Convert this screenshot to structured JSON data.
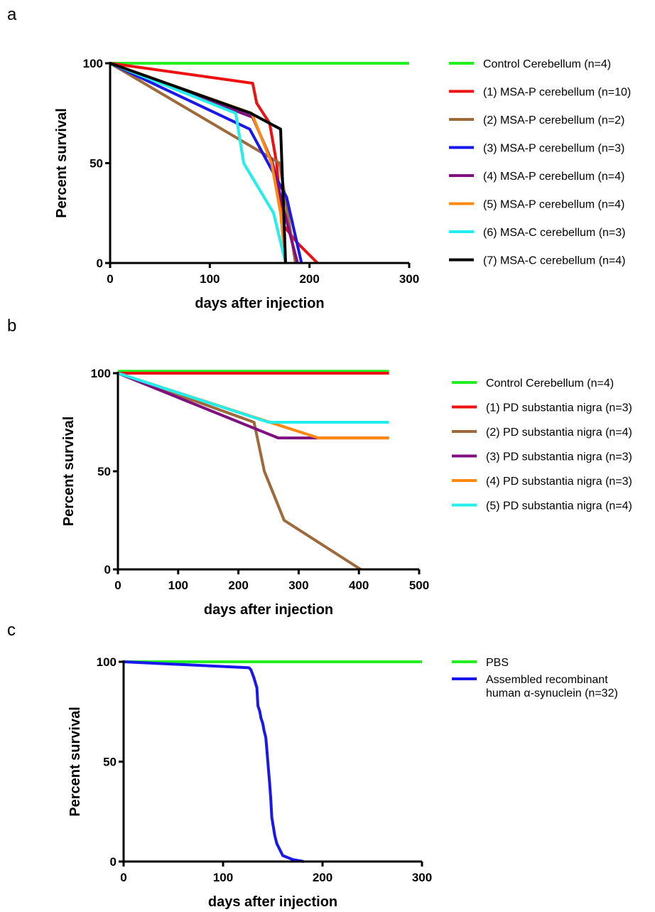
{
  "chart_data": [
    {
      "panel_label": "a",
      "type": "line",
      "xlabel": "days after injection",
      "ylabel": "Percent survival",
      "xlim": [
        0,
        300
      ],
      "ylim": [
        0,
        100
      ],
      "xticks": [
        0,
        100,
        200,
        300
      ],
      "yticks": [
        0,
        50,
        100
      ],
      "grid": false,
      "legend_position": "right",
      "series": [
        {
          "name": "Control Cerebellum (n=4)",
          "color": "#22ee22",
          "x": [
            0,
            300
          ],
          "y": [
            100,
            100
          ]
        },
        {
          "name": "(1) MSA-P cerebellum (n=10)",
          "color": "#ee1111",
          "x": [
            0,
            143,
            147,
            160,
            167,
            172,
            188,
            208
          ],
          "y": [
            100,
            90,
            80,
            70,
            50,
            20,
            10,
            0
          ]
        },
        {
          "name": "(2) MSA-P cerebellum (n=2)",
          "color": "#a0693a",
          "x": [
            0,
            170,
            186
          ],
          "y": [
            100,
            50,
            0
          ]
        },
        {
          "name": "(3) MSA-P cerebellum (n=3)",
          "color": "#1818ee",
          "x": [
            0,
            140,
            177,
            192
          ],
          "y": [
            100,
            67,
            33,
            0
          ]
        },
        {
          "name": "(4) MSA-P cerebellum (n=4)",
          "color": "#801080",
          "x": [
            0,
            143,
            163,
            175,
            188
          ],
          "y": [
            100,
            73,
            50,
            25,
            0
          ]
        },
        {
          "name": "(5) MSA-P cerebellum (n=4)",
          "color": "#ff8811",
          "x": [
            0,
            142,
            162,
            171,
            176
          ],
          "y": [
            100,
            75,
            50,
            25,
            0
          ]
        },
        {
          "name": "(6) MSA-C cerebellum (n=3)",
          "color": "#22eeee",
          "x": [
            0,
            126,
            134,
            164,
            176
          ],
          "y": [
            100,
            75,
            50,
            25,
            0
          ]
        },
        {
          "name": "(7) MSA-C cerebellum (n=4)",
          "color": "#000000",
          "x": [
            0,
            141,
            171,
            176
          ],
          "y": [
            100,
            75,
            67,
            0
          ]
        }
      ]
    },
    {
      "panel_label": "b",
      "type": "line",
      "xlabel": "days after injection",
      "ylabel": "Percent survival",
      "xlim": [
        0,
        500
      ],
      "ylim": [
        0,
        100
      ],
      "xticks": [
        0,
        100,
        200,
        300,
        400,
        500
      ],
      "yticks": [
        0,
        50,
        100
      ],
      "grid": false,
      "legend_position": "right",
      "series": [
        {
          "name": "Control Cerebellum (n=4)",
          "color": "#22ee22",
          "x": [
            0,
            450
          ],
          "y": [
            101,
            101
          ]
        },
        {
          "name": "(1) PD substantia nigra (n=3)",
          "color": "#ee1111",
          "x": [
            0,
            450
          ],
          "y": [
            100,
            100
          ]
        },
        {
          "name": "(2) PD substantia nigra (n=4)",
          "color": "#a0693a",
          "x": [
            0,
            226,
            243,
            276,
            403
          ],
          "y": [
            100,
            75,
            50,
            25,
            0
          ]
        },
        {
          "name": "(3) PD substantia nigra (n=3)",
          "color": "#801080",
          "x": [
            0,
            266,
            450
          ],
          "y": [
            100,
            67,
            67
          ]
        },
        {
          "name": "(4) PD substantia nigra (n=3)",
          "color": "#ff8811",
          "x": [
            0,
            333,
            450
          ],
          "y": [
            100,
            67,
            67
          ]
        },
        {
          "name": "(5) PD substantia nigra (n=4)",
          "color": "#22eeee",
          "x": [
            0,
            250,
            450
          ],
          "y": [
            100,
            75,
            75
          ]
        }
      ]
    },
    {
      "panel_label": "c",
      "type": "line",
      "xlabel": "days after injection",
      "ylabel": "Percent survival",
      "xlim": [
        0,
        300
      ],
      "ylim": [
        0,
        100
      ],
      "xticks": [
        0,
        100,
        200,
        300
      ],
      "yticks": [
        0,
        50,
        100
      ],
      "grid": false,
      "legend_position": "right",
      "series": [
        {
          "name": "PBS",
          "color": "#22ee22",
          "x": [
            0,
            300
          ],
          "y": [
            100,
            100
          ]
        },
        {
          "name": "Assembled recombinant\nhuman α-synuclein (n=32)",
          "color": "#1818ee",
          "x": [
            0,
            126,
            128,
            131,
            134,
            135,
            137,
            138,
            140,
            141,
            143,
            144,
            145,
            146,
            147,
            148,
            149,
            150,
            152,
            154,
            157,
            160,
            170,
            181
          ],
          "y": [
            100,
            97,
            96,
            92,
            87,
            78,
            75,
            72,
            69,
            66,
            62,
            56,
            50,
            44,
            38,
            31,
            22,
            19,
            13,
            9,
            6,
            3,
            1,
            0
          ]
        }
      ]
    }
  ]
}
